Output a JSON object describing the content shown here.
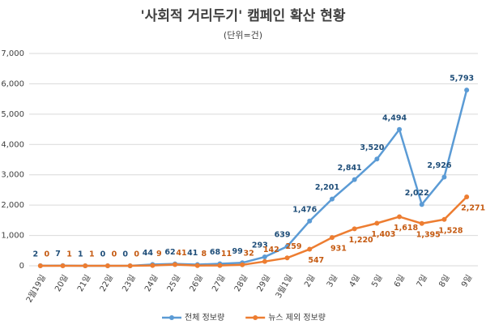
{
  "chart_data": {
    "type": "line",
    "title": "'사회적 거리두기' 캠페인 확산 현황",
    "subtitle": "(단위=건)",
    "categories": [
      "2월19일",
      "20일",
      "21일",
      "22일",
      "23일",
      "24일",
      "25일",
      "26일",
      "27일",
      "28일",
      "29일",
      "3월1일",
      "2일",
      "3일",
      "4일",
      "5일",
      "6일",
      "7일",
      "8일",
      "9일"
    ],
    "series": [
      {
        "name": "전체 정보량",
        "color": "#5b9bd5",
        "values": [
          2,
          7,
          1,
          0,
          0,
          44,
          62,
          41,
          68,
          99,
          293,
          639,
          1476,
          2201,
          2841,
          3520,
          4494,
          2022,
          2926,
          5793
        ],
        "value_labels": [
          "2",
          "7",
          "1",
          "0",
          "0",
          "44",
          "62",
          "41",
          "68",
          "99",
          "293",
          "639",
          "1,476",
          "2,201",
          "2,841",
          "3,520",
          "4,494",
          "2,022",
          "2,926",
          "5,793"
        ]
      },
      {
        "name": "뉴스 제외 정보량",
        "color": "#ed7d31",
        "values": [
          0,
          1,
          1,
          0,
          0,
          9,
          41,
          8,
          11,
          32,
          142,
          259,
          547,
          931,
          1220,
          1403,
          1618,
          1395,
          1528,
          2271
        ],
        "value_labels": [
          "0",
          "1",
          "1",
          "0",
          "0",
          "9",
          "41",
          "8",
          "11",
          "32",
          "142",
          "259",
          "547",
          "931",
          "1,220",
          "1,403",
          "1,618",
          "1,395",
          "1,528",
          "2,271"
        ]
      }
    ],
    "ylim": [
      0,
      7000
    ],
    "yticks": [
      0,
      {
        "value": 1000,
        "label": "1,000"
      },
      {
        "value": 2000,
        "label": "2,000"
      },
      {
        "value": 3000,
        "label": "3,000"
      },
      {
        "value": 4000,
        "label": "4,000"
      },
      {
        "value": 5000,
        "label": "5,000"
      },
      {
        "value": 6000,
        "label": "6,000"
      },
      {
        "value": 7000,
        "label": "7,000"
      }
    ],
    "grid": true,
    "legend": "bottom"
  }
}
